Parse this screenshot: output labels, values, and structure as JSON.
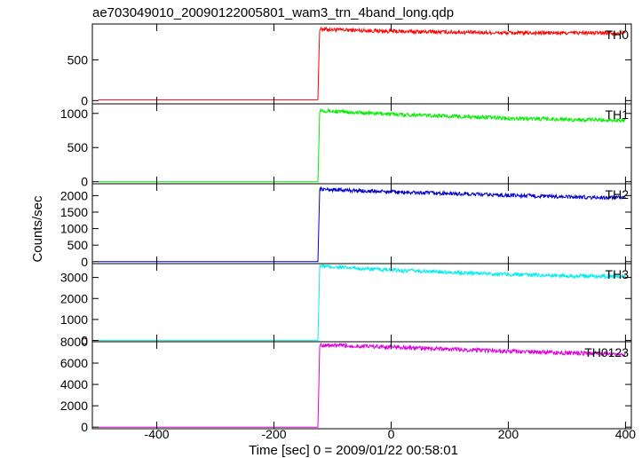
{
  "chart_data": {
    "type": "line",
    "title": "ae703049010_20090122005801_wam3_trn_4band_long.qdp",
    "xlabel": "Time [sec] 0 = 2009/01/22 00:58:01",
    "ylabel": "Counts/sec",
    "xlim": [
      -510,
      410
    ],
    "xticks": [
      -400,
      -200,
      0,
      200,
      400
    ],
    "grid": false,
    "onset_time": -123,
    "panels": [
      {
        "name": "TH0",
        "color": "#ff0000",
        "ylim": [
          -40,
          940
        ],
        "yticks": [
          0,
          500
        ],
        "x": [
          -500,
          -300,
          -125,
          -123,
          -122,
          -100,
          0,
          100,
          200,
          300,
          400
        ],
        "y": [
          10,
          10,
          10,
          600,
          880,
          870,
          850,
          840,
          830,
          830,
          830
        ]
      },
      {
        "name": "TH1",
        "color": "#00ee00",
        "ylim": [
          -30,
          1140
        ],
        "yticks": [
          0,
          500,
          1000
        ],
        "x": [
          -500,
          -300,
          -125,
          -123,
          -122,
          -100,
          0,
          100,
          200,
          300,
          400
        ],
        "y": [
          0,
          0,
          0,
          650,
          1050,
          1030,
          990,
          960,
          930,
          910,
          900
        ]
      },
      {
        "name": "TH2",
        "color": "#0000cc",
        "ylim": [
          -60,
          2360
        ],
        "yticks": [
          0,
          500,
          1000,
          1500,
          2000
        ],
        "x": [
          -500,
          -300,
          -125,
          -123,
          -122,
          -100,
          0,
          100,
          200,
          300,
          400
        ],
        "y": [
          0,
          0,
          0,
          1400,
          2200,
          2180,
          2110,
          2060,
          2010,
          1960,
          1930
        ]
      },
      {
        "name": "TH3",
        "color": "#00eeee",
        "ylim": [
          -60,
          3660
        ],
        "yticks": [
          0,
          1000,
          2000,
          3000
        ],
        "x": [
          -500,
          -300,
          -125,
          -123,
          -122,
          -100,
          0,
          100,
          200,
          300,
          400
        ],
        "y": [
          0,
          0,
          0,
          2200,
          3550,
          3500,
          3350,
          3250,
          3150,
          3080,
          3050
        ]
      },
      {
        "name": "TH0123",
        "color": "#dd00dd",
        "ylim": [
          -150,
          8000
        ],
        "yticks": [
          0,
          2000,
          4000,
          6000,
          8000
        ],
        "x": [
          -500,
          -300,
          -125,
          -123,
          -122,
          -100,
          0,
          100,
          200,
          300,
          400
        ],
        "y": [
          0,
          0,
          0,
          4800,
          7700,
          7650,
          7500,
          7300,
          7100,
          6950,
          6850
        ]
      }
    ]
  }
}
